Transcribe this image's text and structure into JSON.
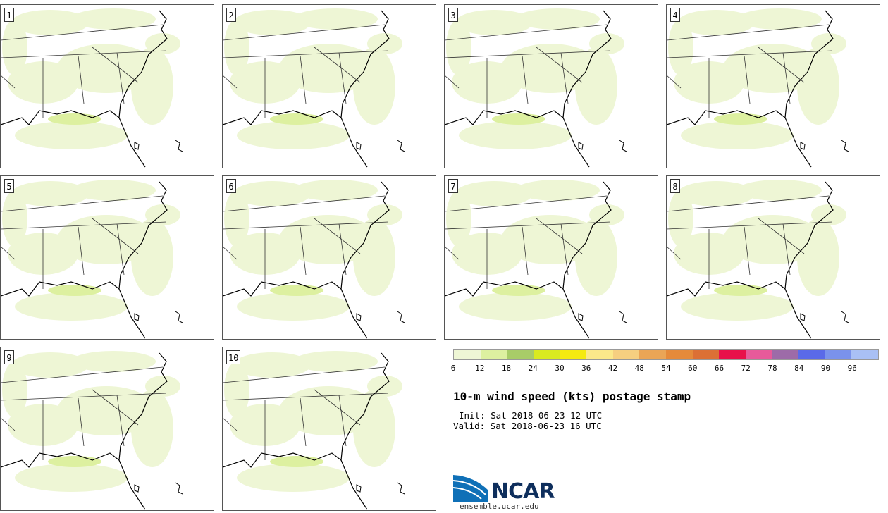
{
  "panels": [
    {
      "label": "1"
    },
    {
      "label": "2"
    },
    {
      "label": "3"
    },
    {
      "label": "4"
    },
    {
      "label": "5"
    },
    {
      "label": "6"
    },
    {
      "label": "7"
    },
    {
      "label": "8"
    },
    {
      "label": "9"
    },
    {
      "label": "10"
    }
  ],
  "colorbar": {
    "colors": [
      "#eef6d5",
      "#ddf0a0",
      "#a8cc68",
      "#d9ea20",
      "#f5ea10",
      "#fbe88a",
      "#f6cf80",
      "#eaa556",
      "#e58a3a",
      "#dc7035",
      "#e8104a",
      "#e75a9a",
      "#9d6ba8",
      "#5a6ae8",
      "#7a92ec",
      "#a9c0f5"
    ],
    "ticks": [
      "6",
      "12",
      "18",
      "24",
      "30",
      "36",
      "42",
      "48",
      "54",
      "60",
      "66",
      "72",
      "78",
      "84",
      "90",
      "96"
    ],
    "tick_color": "#000000"
  },
  "title": "10-m wind speed (kts) postage stamp",
  "init": "Init: Sat 2018-06-23 12 UTC",
  "valid": "Valid: Sat 2018-06-23 16 UTC",
  "logo": {
    "name": "NCAR",
    "url": "ensemble.ucar.edu"
  }
}
